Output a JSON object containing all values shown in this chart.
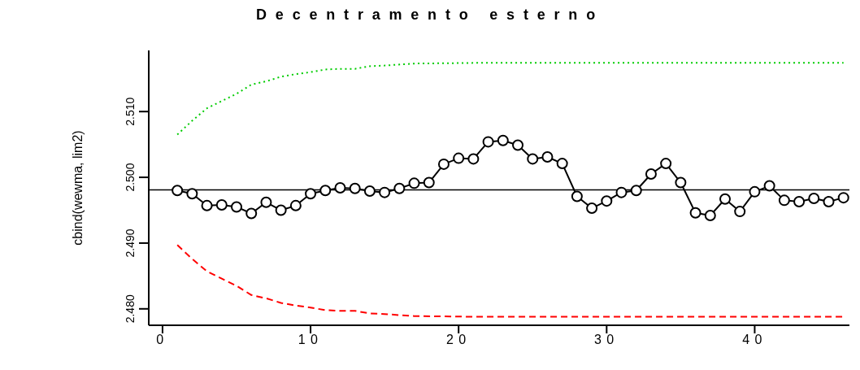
{
  "chart_data": {
    "type": "line",
    "title": "Decentramento esterno",
    "ylabel": "cbind(wewma, lim2)",
    "xlim": [
      -0.93,
      46.4
    ],
    "xticks": [
      0,
      10,
      20,
      30,
      40
    ],
    "ylim": [
      2.4775,
      2.5193
    ],
    "yticks": [
      {
        "value": 2.48,
        "label": "2.480"
      },
      {
        "value": 2.49,
        "label": "2.490"
      },
      {
        "value": 2.5,
        "label": "2.500"
      },
      {
        "value": 2.51,
        "label": "2.510"
      }
    ],
    "grid": false,
    "legend": false,
    "ref_lines": [
      {
        "axis": "y",
        "value": 2.4981,
        "color": "#000000"
      }
    ],
    "series": [
      {
        "color": "#000000",
        "marker": "circle",
        "line_style": "solid",
        "x": [
          1,
          2,
          3,
          4,
          5,
          6,
          7,
          8,
          9,
          10,
          11,
          12,
          13,
          14,
          15,
          16,
          17,
          18,
          19,
          20,
          21,
          22,
          23,
          24,
          25,
          26,
          27,
          28,
          29,
          30,
          31,
          32,
          33,
          34,
          35,
          36,
          37,
          38,
          39,
          40,
          41,
          42,
          43,
          44,
          45,
          46
        ],
        "values": [
          2.498,
          2.4975,
          2.4957,
          2.4958,
          2.4955,
          2.4945,
          2.4962,
          2.495,
          2.4957,
          2.4975,
          2.498,
          2.4984,
          2.4983,
          2.4979,
          2.4977,
          2.4983,
          2.4991,
          2.4992,
          2.502,
          2.5029,
          2.5028,
          2.5054,
          2.5056,
          2.5049,
          2.5028,
          2.5031,
          2.5021,
          2.4971,
          2.4953,
          2.4964,
          2.4977,
          2.498,
          2.5005,
          2.5021,
          2.4992,
          2.4946,
          2.4942,
          2.4967,
          2.4948,
          2.4978,
          2.4987,
          2.4965,
          2.4963,
          2.4968,
          2.4963,
          2.4969
        ]
      },
      {
        "color": "#00cc00",
        "marker": "none",
        "line_style": "dotted",
        "x": [
          1,
          2,
          3,
          4,
          5,
          6,
          7,
          8,
          9,
          10,
          11,
          12,
          13,
          14,
          15,
          17,
          21,
          46
        ],
        "values": [
          2.5065,
          2.5086,
          2.5105,
          2.5116,
          2.5127,
          2.5141,
          2.5146,
          2.5153,
          2.5157,
          2.516,
          2.5164,
          2.5165,
          2.5165,
          2.5169,
          2.517,
          2.5173,
          2.5174,
          2.5174
        ]
      },
      {
        "color": "#ff0000",
        "marker": "none",
        "line_style": "dashed",
        "x": [
          1,
          2,
          3,
          4,
          5,
          6,
          7,
          8,
          9,
          10,
          11,
          12,
          13,
          14,
          15,
          17,
          21,
          46
        ],
        "values": [
          2.4897,
          2.4876,
          2.4857,
          2.4846,
          2.4835,
          2.4821,
          2.4816,
          2.4809,
          2.4805,
          2.4802,
          2.4798,
          2.4797,
          2.4797,
          2.4793,
          2.4792,
          2.4789,
          2.4788,
          2.4788
        ]
      }
    ]
  }
}
